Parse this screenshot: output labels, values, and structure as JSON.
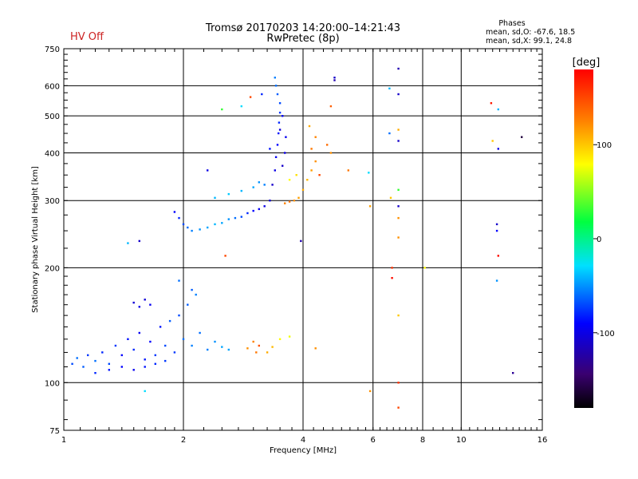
{
  "status": {
    "text": "HV Off",
    "color": "#cc2222"
  },
  "header": {
    "title": "Tromsø 20170203 14:20:00–14:21:43",
    "subtitle": "RwPretec (8p)"
  },
  "stats": {
    "heading": "Phases",
    "line_o": "mean, sd,O: -67.6, 18.5",
    "line_x": "mean, sd,X:  99.1, 24.8"
  },
  "colorbar": {
    "unit_label": "[deg]",
    "min": -180,
    "max": 180,
    "ticks": [
      {
        "value": 100,
        "label": "100"
      },
      {
        "value": 0,
        "label": "0"
      },
      {
        "value": -100,
        "label": "-100"
      }
    ]
  },
  "chart_data": {
    "type": "scatter",
    "title": "Tromsø 20170203 14:20:00–14:21:43",
    "subtitle": "RwPretec (8p)",
    "xlabel": "Frequency [MHz]",
    "ylabel": "Stationary phase Virtual Height [km]",
    "xscale": "log",
    "yscale": "log",
    "xlim": [
      1,
      16
    ],
    "ylim": [
      75,
      750
    ],
    "xticks": [
      {
        "value": 1,
        "label": "1"
      },
      {
        "value": 2,
        "label": "2"
      },
      {
        "value": 4,
        "label": "4"
      },
      {
        "value": 6,
        "label": "6"
      },
      {
        "value": 8,
        "label": "8"
      },
      {
        "value": 10,
        "label": "10"
      },
      {
        "value": 16,
        "label": "16"
      }
    ],
    "yticks": [
      {
        "value": 75,
        "label": "75"
      },
      {
        "value": 100,
        "label": "100"
      },
      {
        "value": 200,
        "label": "200"
      },
      {
        "value": 300,
        "label": "300"
      },
      {
        "value": 400,
        "label": "400"
      },
      {
        "value": 500,
        "label": "500"
      },
      {
        "value": 600,
        "label": "600"
      },
      {
        "value": 750,
        "label": "750"
      }
    ],
    "x_gridlines": [
      2,
      4,
      6,
      8,
      10
    ],
    "y_gridlines": [
      100,
      200,
      300,
      400,
      500,
      600
    ],
    "colormap": "rainbow (black → blue → cyan → green → yellow → red)",
    "points": [
      {
        "f": 1.05,
        "h": 112,
        "p": -70
      },
      {
        "f": 1.08,
        "h": 116,
        "p": -60
      },
      {
        "f": 1.12,
        "h": 110,
        "p": -65
      },
      {
        "f": 1.15,
        "h": 118,
        "p": -75
      },
      {
        "f": 1.2,
        "h": 114,
        "p": -60
      },
      {
        "f": 1.25,
        "h": 120,
        "p": -80
      },
      {
        "f": 1.3,
        "h": 112,
        "p": -70
      },
      {
        "f": 1.35,
        "h": 125,
        "p": -75
      },
      {
        "f": 1.4,
        "h": 118,
        "p": -90
      },
      {
        "f": 1.45,
        "h": 130,
        "p": -85
      },
      {
        "f": 1.5,
        "h": 122,
        "p": -80
      },
      {
        "f": 1.55,
        "h": 135,
        "p": -95
      },
      {
        "f": 1.6,
        "h": 115,
        "p": -85
      },
      {
        "f": 1.65,
        "h": 128,
        "p": -90
      },
      {
        "f": 1.7,
        "h": 118,
        "p": -75
      },
      {
        "f": 1.75,
        "h": 140,
        "p": -85
      },
      {
        "f": 1.8,
        "h": 125,
        "p": -70
      },
      {
        "f": 1.85,
        "h": 145,
        "p": -65
      },
      {
        "f": 1.9,
        "h": 120,
        "p": -75
      },
      {
        "f": 1.95,
        "h": 150,
        "p": -70
      },
      {
        "f": 2.0,
        "h": 130,
        "p": -60
      },
      {
        "f": 2.05,
        "h": 160,
        "p": -65
      },
      {
        "f": 2.1,
        "h": 125,
        "p": -55
      },
      {
        "f": 2.2,
        "h": 135,
        "p": -60
      },
      {
        "f": 2.3,
        "h": 122,
        "p": -55
      },
      {
        "f": 2.4,
        "h": 128,
        "p": -50
      },
      {
        "f": 2.5,
        "h": 124,
        "p": -45
      },
      {
        "f": 2.6,
        "h": 122,
        "p": -45
      },
      {
        "f": 1.5,
        "h": 162,
        "p": -105
      },
      {
        "f": 1.55,
        "h": 158,
        "p": -100
      },
      {
        "f": 1.6,
        "h": 165,
        "p": -105
      },
      {
        "f": 1.65,
        "h": 160,
        "p": -95
      },
      {
        "f": 1.95,
        "h": 185,
        "p": -60
      },
      {
        "f": 2.1,
        "h": 175,
        "p": -65
      },
      {
        "f": 2.15,
        "h": 170,
        "p": -55
      },
      {
        "f": 1.2,
        "h": 106,
        "p": -80
      },
      {
        "f": 1.3,
        "h": 108,
        "p": -85
      },
      {
        "f": 1.4,
        "h": 110,
        "p": -90
      },
      {
        "f": 1.5,
        "h": 108,
        "p": -95
      },
      {
        "f": 1.6,
        "h": 110,
        "p": -85
      },
      {
        "f": 1.7,
        "h": 112,
        "p": -80
      },
      {
        "f": 1.8,
        "h": 114,
        "p": -75
      },
      {
        "f": 2.9,
        "h": 123,
        "p": 120
      },
      {
        "f": 3.0,
        "h": 128,
        "p": 125
      },
      {
        "f": 3.05,
        "h": 120,
        "p": 130
      },
      {
        "f": 3.1,
        "h": 125,
        "p": 145
      },
      {
        "f": 3.25,
        "h": 120,
        "p": 110
      },
      {
        "f": 3.35,
        "h": 124,
        "p": 105
      },
      {
        "f": 3.5,
        "h": 130,
        "p": 80
      },
      {
        "f": 3.7,
        "h": 132,
        "p": 75
      },
      {
        "f": 1.9,
        "h": 280,
        "p": -90
      },
      {
        "f": 1.95,
        "h": 270,
        "p": -80
      },
      {
        "f": 2.0,
        "h": 260,
        "p": -70
      },
      {
        "f": 2.05,
        "h": 255,
        "p": -60
      },
      {
        "f": 2.1,
        "h": 250,
        "p": -55
      },
      {
        "f": 2.2,
        "h": 252,
        "p": -50
      },
      {
        "f": 2.3,
        "h": 255,
        "p": -45
      },
      {
        "f": 2.4,
        "h": 260,
        "p": -40
      },
      {
        "f": 2.5,
        "h": 262,
        "p": -45
      },
      {
        "f": 2.6,
        "h": 268,
        "p": -50
      },
      {
        "f": 2.7,
        "h": 270,
        "p": -60
      },
      {
        "f": 2.8,
        "h": 272,
        "p": -70
      },
      {
        "f": 2.9,
        "h": 278,
        "p": -80
      },
      {
        "f": 3.0,
        "h": 282,
        "p": -90
      },
      {
        "f": 3.1,
        "h": 285,
        "p": -95
      },
      {
        "f": 3.2,
        "h": 290,
        "p": -100
      },
      {
        "f": 2.4,
        "h": 305,
        "p": -40
      },
      {
        "f": 2.6,
        "h": 312,
        "p": -35
      },
      {
        "f": 2.8,
        "h": 318,
        "p": -40
      },
      {
        "f": 3.0,
        "h": 325,
        "p": -45
      },
      {
        "f": 3.1,
        "h": 335,
        "p": -50
      },
      {
        "f": 3.2,
        "h": 330,
        "p": -55
      },
      {
        "f": 3.3,
        "h": 300,
        "p": -105
      },
      {
        "f": 3.35,
        "h": 330,
        "p": -110
      },
      {
        "f": 3.4,
        "h": 360,
        "p": -100
      },
      {
        "f": 3.42,
        "h": 390,
        "p": -95
      },
      {
        "f": 3.45,
        "h": 420,
        "p": -90
      },
      {
        "f": 3.47,
        "h": 450,
        "p": -85
      },
      {
        "f": 3.48,
        "h": 480,
        "p": -80
      },
      {
        "f": 3.5,
        "h": 510,
        "p": -75
      },
      {
        "f": 3.5,
        "h": 540,
        "p": -70
      },
      {
        "f": 3.45,
        "h": 570,
        "p": -65
      },
      {
        "f": 3.42,
        "h": 600,
        "p": -60
      },
      {
        "f": 3.4,
        "h": 630,
        "p": -55
      },
      {
        "f": 3.55,
        "h": 370,
        "p": -110
      },
      {
        "f": 3.6,
        "h": 400,
        "p": -100
      },
      {
        "f": 3.62,
        "h": 440,
        "p": -95
      },
      {
        "f": 3.5,
        "h": 460,
        "p": -105
      },
      {
        "f": 3.55,
        "h": 500,
        "p": -90
      },
      {
        "f": 3.3,
        "h": 410,
        "p": -85
      },
      {
        "f": 3.6,
        "h": 295,
        "p": 125
      },
      {
        "f": 3.7,
        "h": 298,
        "p": 130
      },
      {
        "f": 3.8,
        "h": 300,
        "p": 120
      },
      {
        "f": 3.9,
        "h": 305,
        "p": 115
      },
      {
        "f": 4.0,
        "h": 320,
        "p": 110
      },
      {
        "f": 4.1,
        "h": 340,
        "p": 105
      },
      {
        "f": 4.2,
        "h": 360,
        "p": 115
      },
      {
        "f": 4.3,
        "h": 380,
        "p": 120
      },
      {
        "f": 4.2,
        "h": 410,
        "p": 130
      },
      {
        "f": 4.3,
        "h": 440,
        "p": 125
      },
      {
        "f": 4.15,
        "h": 470,
        "p": 110
      },
      {
        "f": 4.6,
        "h": 420,
        "p": 135
      },
      {
        "f": 4.7,
        "h": 400,
        "p": 120
      },
      {
        "f": 4.4,
        "h": 350,
        "p": 150
      },
      {
        "f": 3.85,
        "h": 350,
        "p": 90
      },
      {
        "f": 3.7,
        "h": 340,
        "p": 80
      },
      {
        "f": 2.3,
        "h": 360,
        "p": -100
      },
      {
        "f": 1.55,
        "h": 235,
        "p": -110
      },
      {
        "f": 1.45,
        "h": 232,
        "p": -40
      },
      {
        "f": 2.55,
        "h": 215,
        "p": 150
      },
      {
        "f": 2.5,
        "h": 520,
        "p": 30
      },
      {
        "f": 2.8,
        "h": 530,
        "p": -30
      },
      {
        "f": 2.95,
        "h": 560,
        "p": 150
      },
      {
        "f": 3.15,
        "h": 570,
        "p": -80
      },
      {
        "f": 4.8,
        "h": 630,
        "p": -110
      },
      {
        "f": 4.8,
        "h": 620,
        "p": -120
      },
      {
        "f": 4.7,
        "h": 530,
        "p": 140
      },
      {
        "f": 3.95,
        "h": 235,
        "p": -120
      },
      {
        "f": 5.2,
        "h": 360,
        "p": 130
      },
      {
        "f": 5.85,
        "h": 355,
        "p": -30
      },
      {
        "f": 5.9,
        "h": 290,
        "p": 115
      },
      {
        "f": 6.6,
        "h": 590,
        "p": -40
      },
      {
        "f": 6.6,
        "h": 450,
        "p": -60
      },
      {
        "f": 6.65,
        "h": 305,
        "p": 100
      },
      {
        "f": 6.7,
        "h": 200,
        "p": 160
      },
      {
        "f": 6.7,
        "h": 188,
        "p": 175
      },
      {
        "f": 6.95,
        "h": 665,
        "p": -120
      },
      {
        "f": 6.95,
        "h": 570,
        "p": -110
      },
      {
        "f": 6.95,
        "h": 460,
        "p": 110
      },
      {
        "f": 6.95,
        "h": 430,
        "p": -110
      },
      {
        "f": 6.95,
        "h": 320,
        "p": 30
      },
      {
        "f": 6.95,
        "h": 290,
        "p": -110
      },
      {
        "f": 6.95,
        "h": 270,
        "p": 120
      },
      {
        "f": 6.95,
        "h": 240,
        "p": 120
      },
      {
        "f": 6.95,
        "h": 150,
        "p": 100
      },
      {
        "f": 6.95,
        "h": 100,
        "p": 160
      },
      {
        "f": 6.95,
        "h": 86,
        "p": 150
      },
      {
        "f": 5.9,
        "h": 95,
        "p": 120
      },
      {
        "f": 8.1,
        "h": 200,
        "p": 80
      },
      {
        "f": 4.3,
        "h": 123,
        "p": 120
      },
      {
        "f": 1.6,
        "h": 95,
        "p": -30
      },
      {
        "f": 11.9,
        "h": 540,
        "p": 170
      },
      {
        "f": 12.4,
        "h": 520,
        "p": -40
      },
      {
        "f": 12.4,
        "h": 410,
        "p": -100
      },
      {
        "f": 12.3,
        "h": 260,
        "p": -110
      },
      {
        "f": 12.3,
        "h": 250,
        "p": -90
      },
      {
        "f": 12.4,
        "h": 215,
        "p": 175
      },
      {
        "f": 12.3,
        "h": 185,
        "p": -50
      },
      {
        "f": 14.2,
        "h": 440,
        "p": -160
      },
      {
        "f": 13.5,
        "h": 106,
        "p": -130
      },
      {
        "f": 12.0,
        "h": 430,
        "p": 100
      }
    ]
  }
}
